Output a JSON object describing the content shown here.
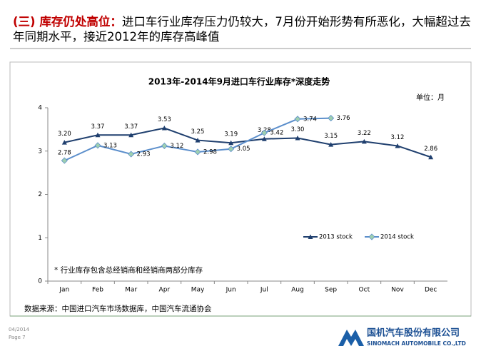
{
  "header": {
    "prefix": "(三) 库存仍处高位：",
    "text": "进口车行业库存压力仍较大，7月份开始形势有所恶化，大幅超过去年同期水平，接近2012年的库存高峰值"
  },
  "chart_data": {
    "type": "line",
    "title": "2013年-2014年9月进口车行业库存*深度走势",
    "unit": "单位：月",
    "note": "* 行业库存包含总经销商和经销商两部分库存",
    "categories": [
      "Jan",
      "Feb",
      "Mar",
      "Apr",
      "May",
      "Jun",
      "Jul",
      "Aug",
      "Sep",
      "Oct",
      "Nov",
      "Dec"
    ],
    "series": [
      {
        "name": "2013 stock",
        "color": "#1f3f6e",
        "marker": "triangle",
        "values": [
          3.2,
          3.37,
          3.37,
          3.53,
          3.25,
          3.19,
          3.28,
          3.3,
          3.15,
          3.22,
          3.12,
          2.86
        ],
        "value_labels": [
          "3.20",
          "3.37",
          "3.37",
          "3.53",
          "3.25",
          "3.19",
          "3.28",
          "3.30",
          "3.15",
          "3.22",
          "3.12",
          "2.86"
        ]
      },
      {
        "name": "2014 stock",
        "color": "#5b8ecb",
        "marker": "diamond",
        "values": [
          2.78,
          3.13,
          2.93,
          3.12,
          2.98,
          3.05,
          3.42,
          3.74,
          3.76,
          null,
          null,
          null
        ],
        "value_labels": [
          "2.78",
          "3.13",
          "2.93",
          "3.12",
          "2.98",
          "3.05",
          "3.42",
          "3.74",
          "3.76",
          null,
          null,
          null
        ]
      }
    ],
    "ylim": [
      0,
      4
    ],
    "yticks": [
      0,
      1,
      2,
      3,
      4
    ],
    "grid": false,
    "legend": "lower right"
  },
  "source": "数据来源：中国进口汽车市场数据库，中国汽车流通协会",
  "footer": {
    "date": "04/2014",
    "page": "Page 7",
    "company": "国机汽车股份有限公司",
    "company_en": "SINOMACH AUTOMOBILE CO.,LTD"
  }
}
